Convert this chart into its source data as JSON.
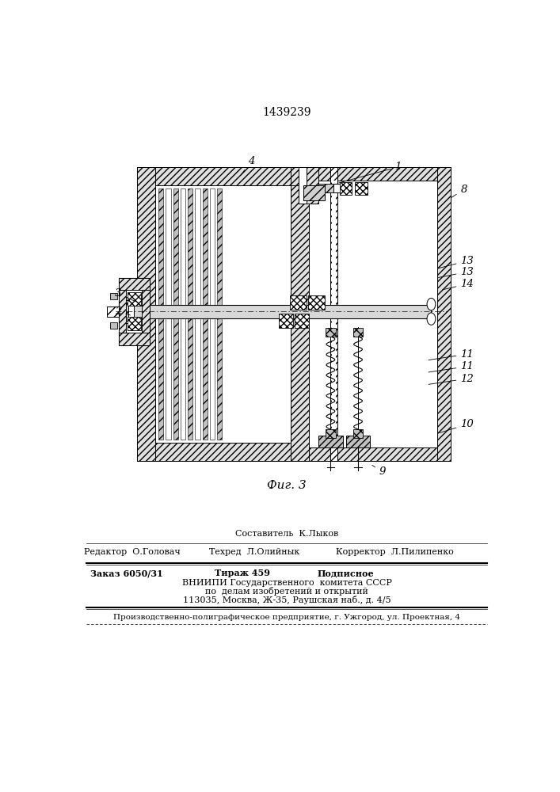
{
  "patent_number": "1439239",
  "fig_label": "Фиг. 3",
  "footer": {
    "sostavitel": "Составитель  К.Лыков",
    "redaktor": "Редактор  О.Головач",
    "tehred": "Техред  Л.Олийнык",
    "korrektor": "Корректор  Л.Пилипенко",
    "zakaz": "Заказ 6050/31",
    "tirazh": "Тираж 459",
    "podpisnoe": "Подписное",
    "vniip1": "ВНИИПИ Государственного  комитета СССР",
    "vniip2": "по  делам изобретений и открытий",
    "vniip3": "113035, Москва, Ж-35, Раушская наб., д. 4/5",
    "proizv": "Производственно-полиграфическое предприятие, г. Ужгород, ул. Проектная, 4"
  },
  "bg_color": "#ffffff"
}
